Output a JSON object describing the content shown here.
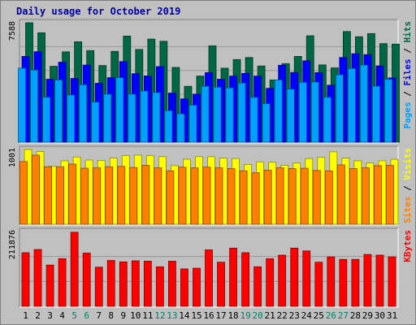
{
  "chart_data": {
    "type": "bar",
    "title": "Daily usage for October 2019",
    "categories": [
      "1",
      "2",
      "3",
      "4",
      "5",
      "6",
      "7",
      "8",
      "9",
      "10",
      "11",
      "12",
      "13",
      "14",
      "15",
      "16",
      "17",
      "18",
      "19",
      "20",
      "21",
      "22",
      "23",
      "24",
      "25",
      "26",
      "27",
      "28",
      "29",
      "30",
      "31"
    ],
    "weekend_days": [
      "5",
      "6",
      "12",
      "13",
      "19",
      "20",
      "26",
      "27"
    ],
    "panels": [
      {
        "id": "top",
        "max_label": "7588",
        "ylim": [
          0,
          7588
        ],
        "legend": [
          {
            "text": "Pages",
            "color": "#00a0ff"
          },
          {
            "text": "Files",
            "color": "#0000ff"
          },
          {
            "text": "Hits",
            "color": "#006644"
          }
        ],
        "series": [
          {
            "name": "Hits",
            "color": "#006644",
            "values": [
              7588,
              6950,
              4820,
              5740,
              6380,
              5820,
              4870,
              5770,
              6740,
              5890,
              6550,
              6410,
              4750,
              3550,
              4200,
              6120,
              4700,
              5250,
              5380,
              4840,
              3950,
              4990,
              5450,
              6760,
              4910,
              4720,
              7030,
              6700,
              6900,
              6260,
              6230
            ]
          },
          {
            "name": "Files",
            "color": "#0000ff",
            "values": [
              5450,
              5750,
              4000,
              5080,
              4050,
              4900,
              3740,
              4100,
              5120,
              4350,
              4210,
              4800,
              3120,
              2750,
              3050,
              4420,
              4000,
              4200,
              4370,
              4200,
              3420,
              4890,
              4430,
              5170,
              4420,
              3620,
              5380,
              5620,
              5560,
              4850,
              4080
            ]
          },
          {
            "name": "Pages",
            "color": "#00a0ff",
            "values": [
              4700,
              4580,
              2850,
              3950,
              3000,
              3650,
              2550,
              3050,
              4100,
              3050,
              3250,
              3150,
              2000,
              1800,
              2350,
              3550,
              3500,
              3450,
              3750,
              2850,
              2450,
              3950,
              3370,
              3800,
              3820,
              2850,
              4280,
              4680,
              4900,
              3560,
              3990
            ]
          }
        ]
      },
      {
        "id": "middle",
        "max_label": "1001",
        "ylim": [
          0,
          1001
        ],
        "legend": [
          {
            "text": "Sites",
            "color": "#ff8000"
          },
          {
            "text": "Visits",
            "color": "#ffff00"
          }
        ],
        "series": [
          {
            "name": "Visits",
            "color": "#ffff00",
            "values": [
              1001,
              975,
              775,
              850,
              900,
              860,
              855,
              885,
              920,
              925,
              920,
              905,
              785,
              870,
              905,
              905,
              885,
              880,
              800,
              835,
              830,
              790,
              820,
              880,
              895,
              970,
              885,
              850,
              820,
              850,
              870
            ]
          },
          {
            "name": "Sites",
            "color": "#ff8000",
            "values": [
              840,
              925,
              770,
              770,
              805,
              750,
              755,
              770,
              775,
              760,
              790,
              755,
              715,
              765,
              755,
              765,
              755,
              745,
              715,
              690,
              725,
              755,
              745,
              750,
              720,
              715,
              795,
              745,
              755,
              785,
              790
            ]
          }
        ]
      },
      {
        "id": "bottom",
        "max_label": "211876",
        "ylim": [
          0,
          211876
        ],
        "legend": [
          {
            "text": "KBytes",
            "color": "#ff0000"
          }
        ],
        "series": [
          {
            "name": "KBytes",
            "color": "#ff0000",
            "values": [
              152000,
              161000,
              117000,
              135000,
              210000,
              151000,
              111000,
              130000,
              126000,
              129000,
              128000,
              112000,
              128000,
              106000,
              108000,
              160000,
              125000,
              165000,
              152000,
              112000,
              135000,
              145000,
              165000,
              157000,
              125000,
              140000,
              133000,
              133000,
              147000,
              145000,
              140000
            ]
          }
        ]
      }
    ]
  }
}
